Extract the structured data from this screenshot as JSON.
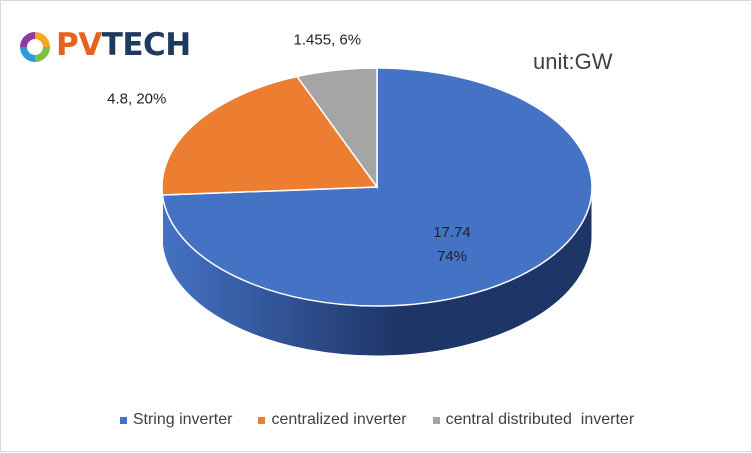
{
  "logo": {
    "prefix": "PV",
    "suffix": "TECH",
    "prefix_color": "#E8621F",
    "suffix_color": "#1F3A5F"
  },
  "unit_label": "unit:GW",
  "chart_data": {
    "type": "pie",
    "style": "3d",
    "slices": [
      {
        "name": "String inverter",
        "value": 17.74,
        "percent": 74,
        "color": "#4472C4",
        "dark_color": "#1E3567",
        "label_lines": [
          "17.74",
          "74%"
        ]
      },
      {
        "name": "centralized inverter",
        "value": 4.8,
        "percent": 20,
        "color": "#ED7D31",
        "dark_color": "#8A4217",
        "label_lines": [
          "4.8, 20%"
        ]
      },
      {
        "name": "central distributed  inverter",
        "value": 1.455,
        "percent": 6,
        "color": "#A5A5A5",
        "dark_color": "#5E5E5E",
        "label_lines": [
          "1.455, 6%"
        ]
      }
    ],
    "legend_position": "bottom"
  }
}
